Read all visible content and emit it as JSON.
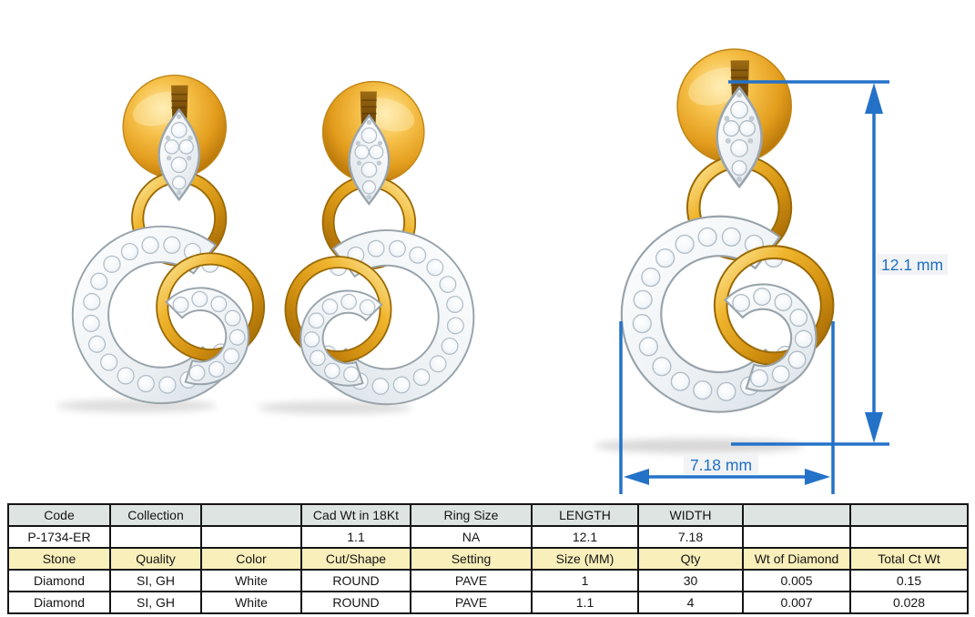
{
  "annotations": {
    "length_label": "12.1 mm",
    "width_label": "7.18 mm",
    "line_color": "#2472c8"
  },
  "product": {
    "code": "P-1734-ER",
    "metal_color_hex": "#e8a92a",
    "diamond_color_hex": "#eef2f5"
  },
  "spec_table": {
    "header_row": [
      "Code",
      "Collection",
      "",
      "Cad Wt in 18Kt",
      "Ring Size",
      "LENGTH",
      "WIDTH",
      "",
      ""
    ],
    "info_row": [
      "P-1734-ER",
      "",
      "",
      "1.1",
      "NA",
      "12.1",
      "7.18",
      "",
      ""
    ],
    "stone_header_row": [
      "Stone",
      "Quality",
      "Color",
      "Cut/Shape",
      "Setting",
      "Size (MM)",
      "Qty",
      "Wt of Diamond",
      "Total Ct Wt"
    ],
    "stone_rows": [
      [
        "Diamond",
        "SI, GH",
        "White",
        "ROUND",
        "PAVE",
        "1",
        "30",
        "0.005",
        "0.15"
      ],
      [
        "Diamond",
        "SI, GH",
        "White",
        "ROUND",
        "PAVE",
        "1.1",
        "4",
        "0.007",
        "0.028"
      ]
    ]
  }
}
